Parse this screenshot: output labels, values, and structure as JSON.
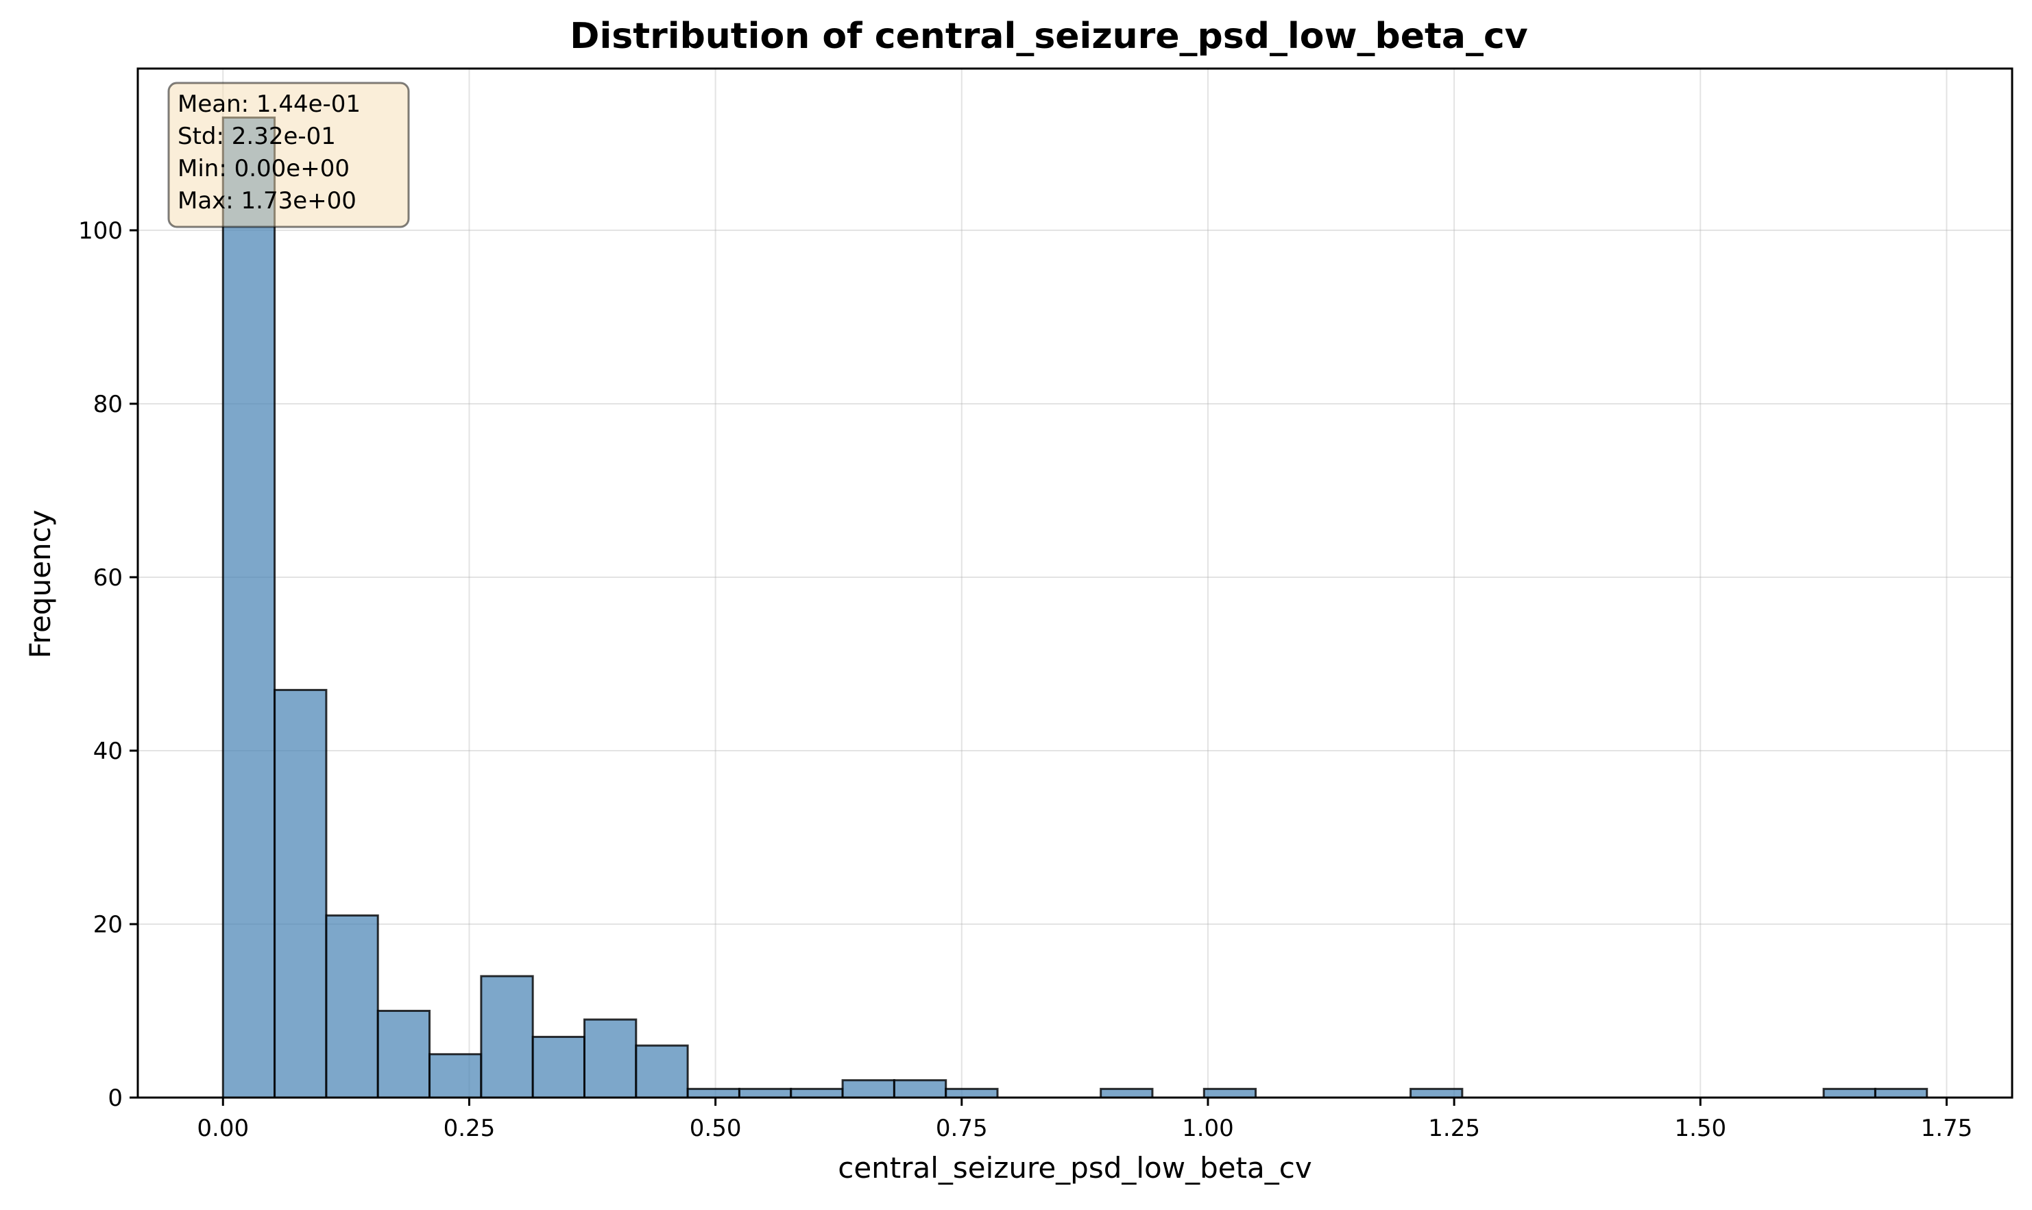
{
  "chart_data": {
    "type": "bar",
    "title": "Distribution of central_seizure_psd_low_beta_cv",
    "xlabel": "central_seizure_psd_low_beta_cv",
    "ylabel": "Frequency",
    "xlim": [
      -0.0865,
      1.8165
    ],
    "ylim": [
      0,
      118.65
    ],
    "x_ticks": [
      0.0,
      0.25,
      0.5,
      0.75,
      1.0,
      1.25,
      1.5,
      1.75
    ],
    "x_tick_labels": [
      "0.00",
      "0.25",
      "0.50",
      "0.75",
      "1.00",
      "1.25",
      "1.50",
      "1.75"
    ],
    "y_ticks": [
      0,
      20,
      40,
      60,
      80,
      100
    ],
    "y_tick_labels": [
      "0",
      "20",
      "40",
      "60",
      "80",
      "100"
    ],
    "bin_range": [
      0.0,
      1.73
    ],
    "bin_count": 33,
    "values": [
      113,
      47,
      21,
      10,
      5,
      14,
      7,
      9,
      6,
      1,
      1,
      1,
      2,
      2,
      1,
      0,
      0,
      1,
      0,
      1,
      0,
      0,
      0,
      1,
      0,
      0,
      0,
      0,
      0,
      0,
      0,
      1,
      1
    ],
    "bar_color": "#4682b4",
    "edge_color": "#000000",
    "grid": true,
    "stats_box": {
      "lines": [
        "Mean: 1.44e-01",
        "Std: 2.32e-01",
        "Min: 0.00e+00",
        "Max: 1.73e+00"
      ],
      "placement": "top-left",
      "background": "#f5deb3"
    }
  }
}
